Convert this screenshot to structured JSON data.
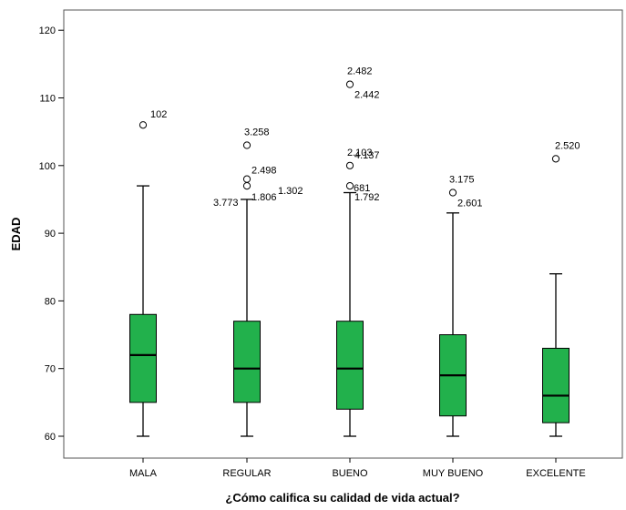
{
  "chart_data": {
    "type": "boxplot",
    "xlabel": "¿Cómo califica su calidad de vida actual?",
    "ylabel": "EDAD",
    "ylim": [
      58,
      122
    ],
    "yticks": [
      60,
      70,
      80,
      90,
      100,
      110,
      120
    ],
    "box_color": "#22b14c",
    "categories": [
      "MALA",
      "REGULAR",
      "BUENO",
      "MUY BUENO",
      "EXCELENTE"
    ],
    "boxes": [
      {
        "category": "MALA",
        "whisker_low": 60,
        "q1": 65,
        "median": 72,
        "q3": 78,
        "whisker_high": 97,
        "outliers": [
          {
            "value": 106,
            "label": "102"
          }
        ]
      },
      {
        "category": "REGULAR",
        "whisker_low": 60,
        "q1": 65,
        "median": 70,
        "q3": 77,
        "whisker_high": 95,
        "outliers": [
          {
            "value": 103,
            "label": "3.258"
          },
          {
            "value": 98,
            "label": "2.498"
          },
          {
            "value": 97,
            "label": "1.806"
          }
        ],
        "extra_labels": [
          "3.773",
          "1.302"
        ]
      },
      {
        "category": "BUENO",
        "whisker_low": 60,
        "q1": 64,
        "median": 70,
        "q3": 77,
        "whisker_high": 96,
        "outliers": [
          {
            "value": 112,
            "label": "2.482"
          },
          {
            "value": 100,
            "label": "2.103"
          },
          {
            "value": 97,
            "label": "681"
          }
        ],
        "extra_labels": [
          "2.442",
          "4.137",
          "1.792"
        ]
      },
      {
        "category": "MUY BUENO",
        "whisker_low": 60,
        "q1": 63,
        "median": 69,
        "q3": 75,
        "whisker_high": 93,
        "outliers": [
          {
            "value": 96,
            "label": "3.175"
          }
        ],
        "extra_labels": [
          "2.601"
        ]
      },
      {
        "category": "EXCELENTE",
        "whisker_low": 60,
        "q1": 62,
        "median": 66,
        "q3": 73,
        "whisker_high": 84,
        "outliers": [
          {
            "value": 101,
            "label": "2.520"
          }
        ]
      }
    ]
  }
}
